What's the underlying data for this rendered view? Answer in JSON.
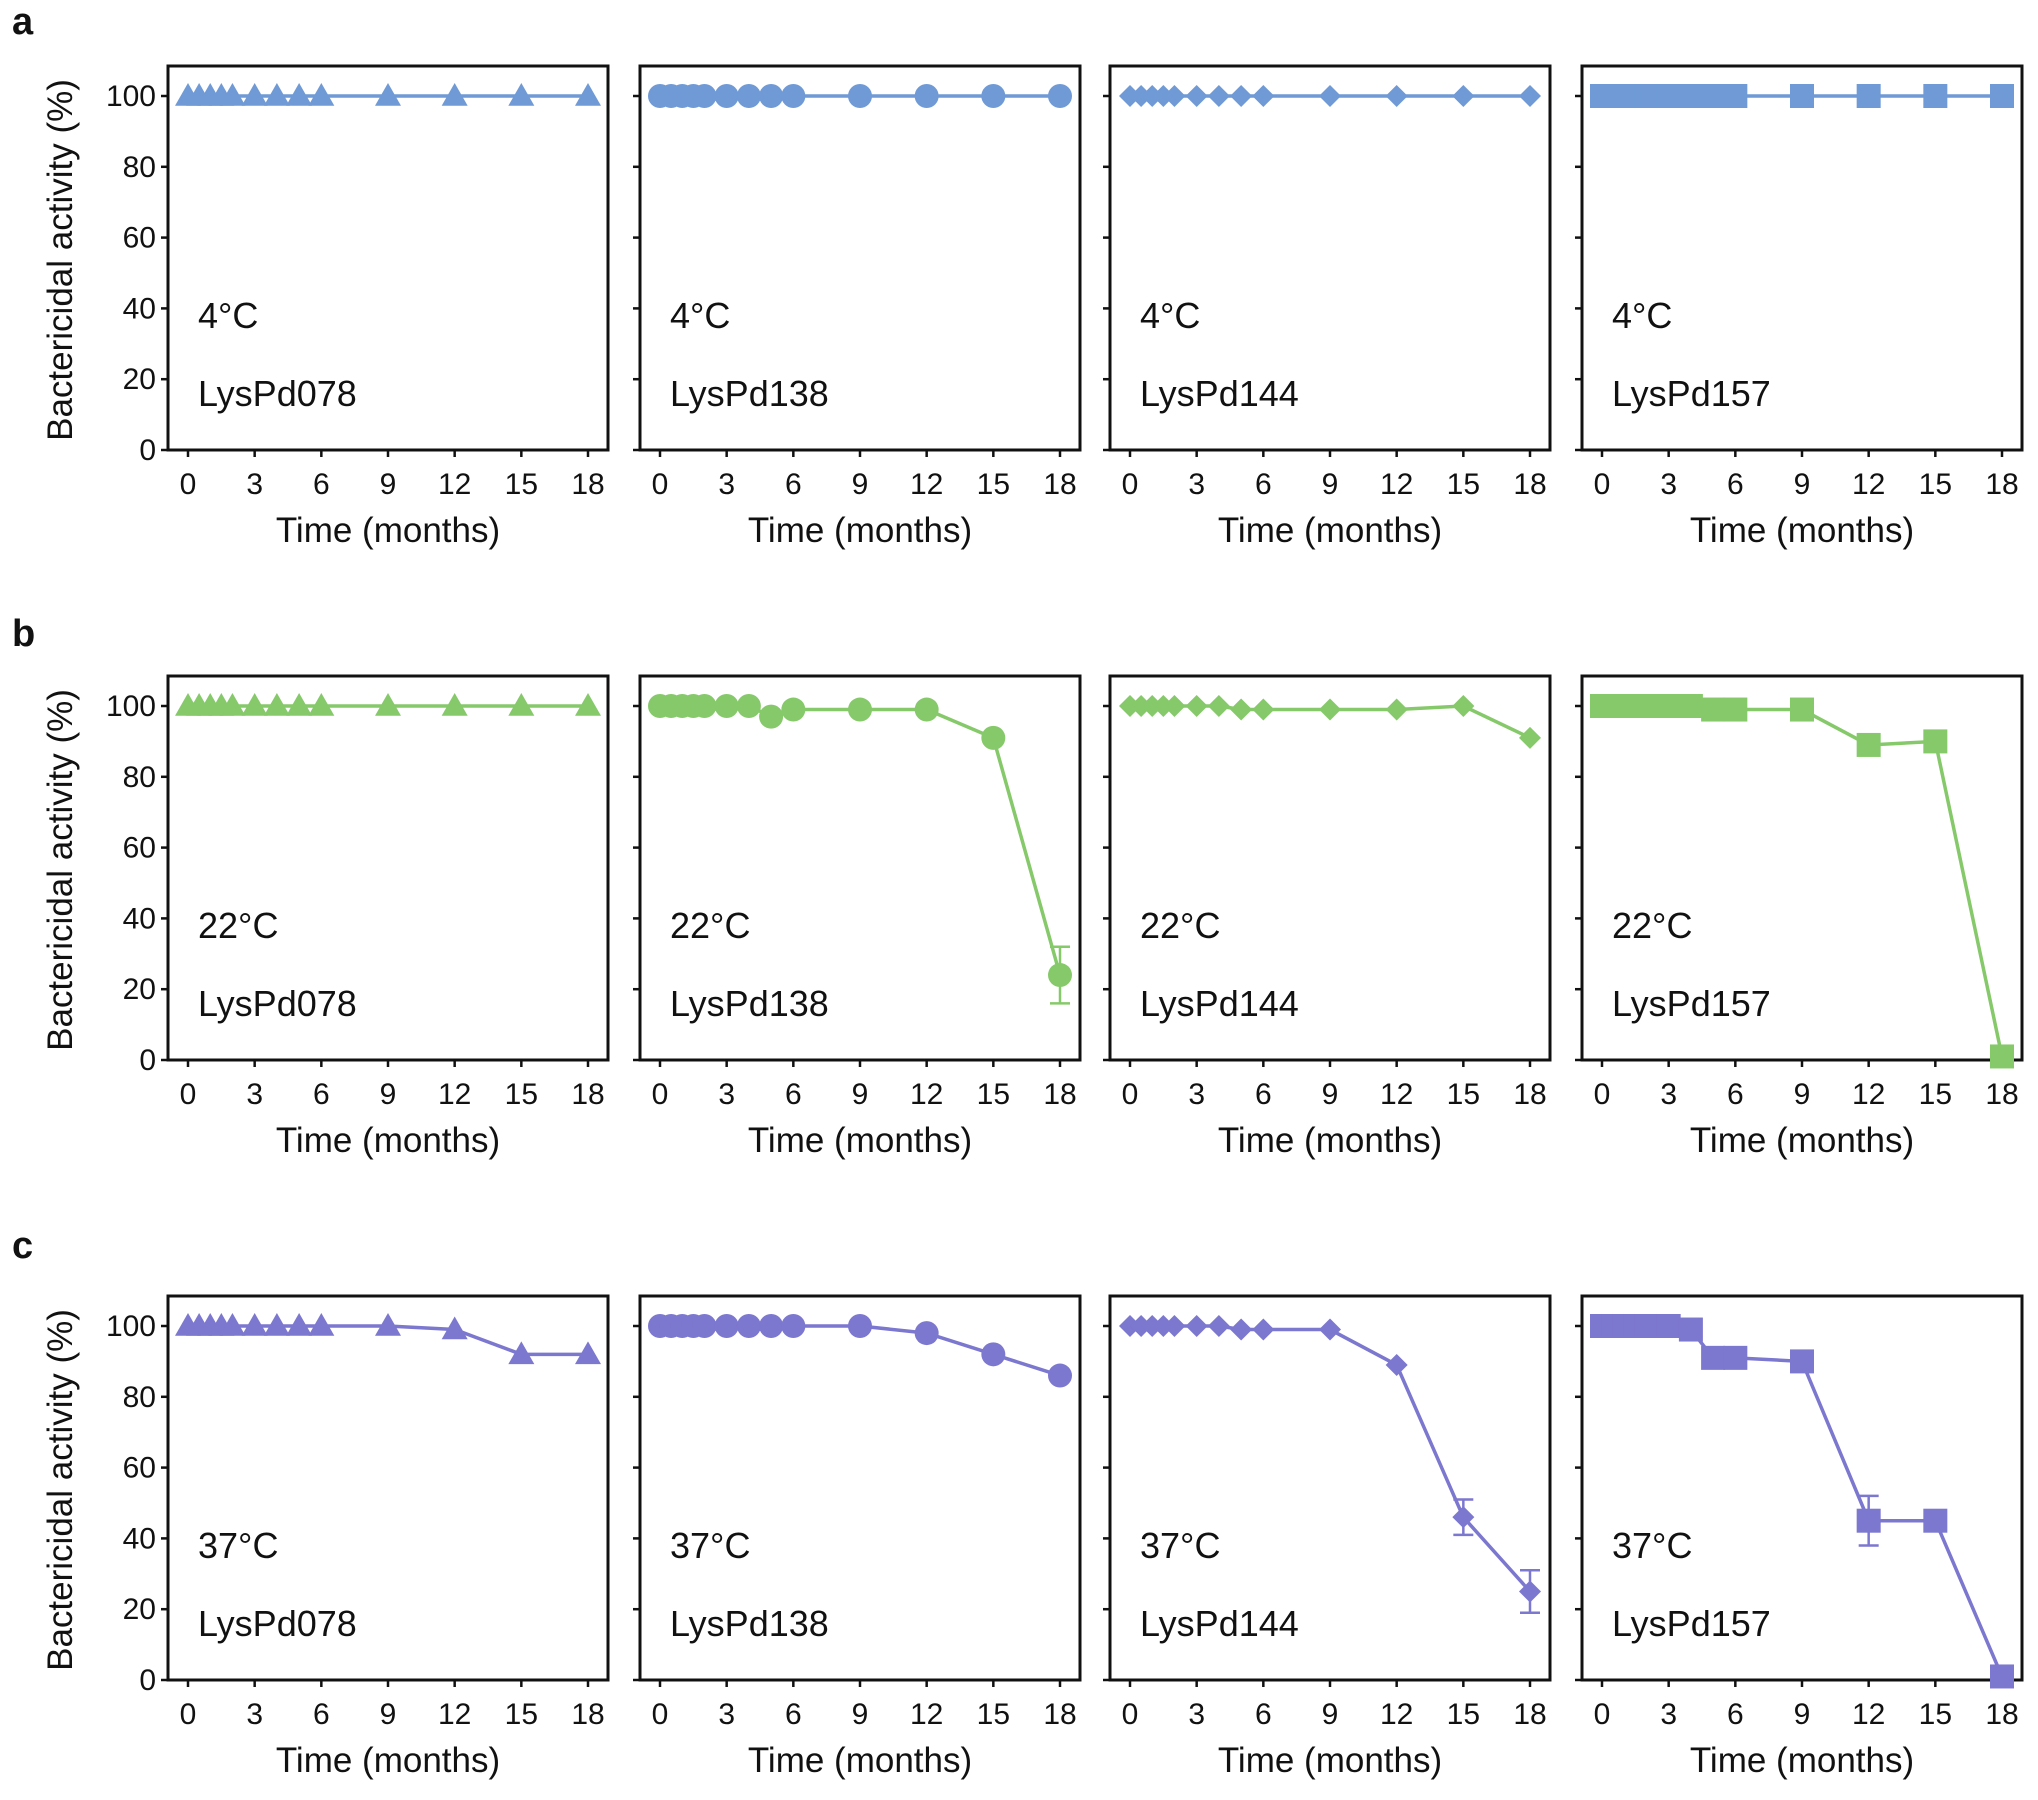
{
  "panel_letters": [
    "a",
    "b",
    "c"
  ],
  "colors": {
    "4C": "#6f9ad6",
    "22C": "#86c96a",
    "37C": "#7c77cf"
  },
  "chart_data": [
    {
      "type": "line",
      "panel": "a",
      "title": "",
      "xlabel": "Time (months)",
      "ylabel": "Bactericidal activity (%)",
      "xlim": [
        0,
        18
      ],
      "ylim": [
        0,
        100
      ],
      "xticks": [
        "0",
        "3",
        "6",
        "9",
        "12",
        "15",
        "18"
      ],
      "yticks": [
        "0",
        "20",
        "40",
        "60",
        "80",
        "100"
      ],
      "temperature": "4°C",
      "color": "#6f9ad6",
      "series": [
        {
          "name": "LysPd078",
          "marker": "triangle",
          "x": [
            0,
            0.5,
            1,
            1.5,
            2,
            3,
            4,
            5,
            6,
            9,
            12,
            15,
            18
          ],
          "y": [
            100,
            100,
            100,
            100,
            100,
            100,
            100,
            100,
            100,
            100,
            100,
            100,
            100
          ],
          "err": []
        },
        {
          "name": "LysPd138",
          "marker": "circle",
          "x": [
            0,
            0.5,
            1,
            1.5,
            2,
            3,
            4,
            5,
            6,
            9,
            12,
            15,
            18
          ],
          "y": [
            100,
            100,
            100,
            100,
            100,
            100,
            100,
            100,
            100,
            100,
            100,
            100,
            100
          ],
          "err": []
        },
        {
          "name": "LysPd144",
          "marker": "diamond",
          "x": [
            0,
            0.5,
            1,
            1.5,
            2,
            3,
            4,
            5,
            6,
            9,
            12,
            15,
            18
          ],
          "y": [
            100,
            100,
            100,
            100,
            100,
            100,
            100,
            100,
            100,
            100,
            100,
            100,
            100
          ],
          "err": []
        },
        {
          "name": "LysPd157",
          "marker": "square",
          "x": [
            0,
            0.5,
            1,
            1.5,
            2,
            3,
            4,
            5,
            6,
            9,
            12,
            15,
            18
          ],
          "y": [
            100,
            100,
            100,
            100,
            100,
            100,
            100,
            100,
            100,
            100,
            100,
            100,
            100
          ],
          "err": []
        }
      ]
    },
    {
      "type": "line",
      "panel": "b",
      "title": "",
      "xlabel": "Time (months)",
      "ylabel": "Bactericidal activity (%)",
      "xlim": [
        0,
        18
      ],
      "ylim": [
        0,
        100
      ],
      "xticks": [
        "0",
        "3",
        "6",
        "9",
        "12",
        "15",
        "18"
      ],
      "yticks": [
        "0",
        "20",
        "40",
        "60",
        "80",
        "100"
      ],
      "temperature": "22°C",
      "color": "#86c96a",
      "series": [
        {
          "name": "LysPd078",
          "marker": "triangle",
          "x": [
            0,
            0.5,
            1,
            1.5,
            2,
            3,
            4,
            5,
            6,
            9,
            12,
            15,
            18
          ],
          "y": [
            100,
            100,
            100,
            100,
            100,
            100,
            100,
            100,
            100,
            100,
            100,
            100,
            100
          ],
          "err": []
        },
        {
          "name": "LysPd138",
          "marker": "circle",
          "x": [
            0,
            0.5,
            1,
            1.5,
            2,
            3,
            4,
            5,
            6,
            9,
            12,
            15,
            18
          ],
          "y": [
            100,
            100,
            100,
            100,
            100,
            100,
            100,
            97,
            99,
            99,
            99,
            91,
            24
          ],
          "err": [
            0,
            0,
            0,
            0,
            0,
            0,
            0,
            0,
            0,
            0,
            0,
            0,
            8
          ]
        },
        {
          "name": "LysPd144",
          "marker": "diamond",
          "x": [
            0,
            0.5,
            1,
            1.5,
            2,
            3,
            4,
            5,
            6,
            9,
            12,
            15,
            18
          ],
          "y": [
            100,
            100,
            100,
            100,
            100,
            100,
            100,
            99,
            99,
            99,
            99,
            100,
            91
          ],
          "err": []
        },
        {
          "name": "LysPd157",
          "marker": "square",
          "x": [
            0,
            0.5,
            1,
            1.5,
            2,
            3,
            4,
            5,
            6,
            9,
            12,
            15,
            18
          ],
          "y": [
            100,
            100,
            100,
            100,
            100,
            100,
            100,
            99,
            99,
            99,
            89,
            90,
            1
          ],
          "err": []
        }
      ]
    },
    {
      "type": "line",
      "panel": "c",
      "title": "",
      "xlabel": "Time (months)",
      "ylabel": "Bactericidal activity (%)",
      "xlim": [
        0,
        18
      ],
      "ylim": [
        0,
        100
      ],
      "xticks": [
        "0",
        "3",
        "6",
        "9",
        "12",
        "15",
        "18"
      ],
      "yticks": [
        "0",
        "20",
        "40",
        "60",
        "80",
        "100"
      ],
      "temperature": "37°C",
      "color": "#7c77cf",
      "series": [
        {
          "name": "LysPd078",
          "marker": "triangle",
          "x": [
            0,
            0.5,
            1,
            1.5,
            2,
            3,
            4,
            5,
            6,
            9,
            12,
            15,
            18
          ],
          "y": [
            100,
            100,
            100,
            100,
            100,
            100,
            100,
            100,
            100,
            100,
            99,
            92,
            92
          ],
          "err": []
        },
        {
          "name": "LysPd138",
          "marker": "circle",
          "x": [
            0,
            0.5,
            1,
            1.5,
            2,
            3,
            4,
            5,
            6,
            9,
            12,
            15,
            18
          ],
          "y": [
            100,
            100,
            100,
            100,
            100,
            100,
            100,
            100,
            100,
            100,
            98,
            92,
            86
          ],
          "err": []
        },
        {
          "name": "LysPd144",
          "marker": "diamond",
          "x": [
            0,
            0.5,
            1,
            1.5,
            2,
            3,
            4,
            5,
            6,
            9,
            12,
            15,
            18
          ],
          "y": [
            100,
            100,
            100,
            100,
            100,
            100,
            100,
            99,
            99,
            99,
            89,
            46,
            25
          ],
          "err": [
            0,
            0,
            0,
            0,
            0,
            0,
            0,
            0,
            0,
            0,
            0,
            5,
            6
          ]
        },
        {
          "name": "LysPd157",
          "marker": "square",
          "x": [
            0,
            0.5,
            1,
            1.5,
            2,
            3,
            4,
            5,
            6,
            9,
            12,
            15,
            18
          ],
          "y": [
            100,
            100,
            100,
            100,
            100,
            100,
            99,
            91,
            91,
            90,
            45,
            45,
            1
          ],
          "err": [
            0,
            0,
            0,
            0,
            0,
            0,
            0,
            0,
            0,
            0,
            7,
            0,
            0
          ]
        }
      ]
    }
  ]
}
